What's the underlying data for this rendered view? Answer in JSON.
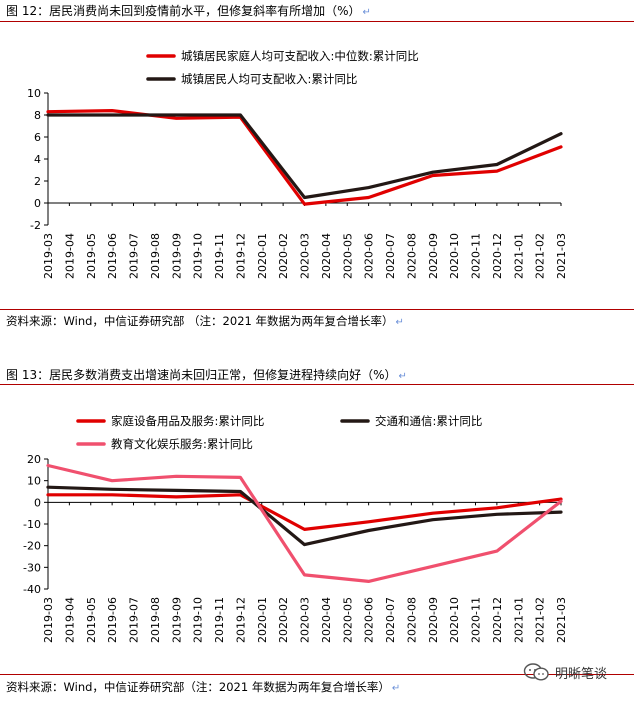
{
  "figure1": {
    "title": "图 12：居民消费尚未回到疫情前水平，但修复斜率有所增加（%）",
    "source": "资料来源：Wind，中信证券研究部 （注：2021 年数据为两年复合增长率）"
  },
  "figure2": {
    "title": "图 13：居民多数消费支出增速尚未回归正常，但修复进程持续向好（%）",
    "source": "资料来源：Wind，中信证券研究部（注：2021 年数据为两年复合增长率）"
  },
  "watermark": {
    "text": "明晰笔谈"
  },
  "chart_data": [
    {
      "type": "line",
      "categories": [
        "2019-03",
        "2019-04",
        "2019-05",
        "2019-06",
        "2019-07",
        "2019-08",
        "2019-09",
        "2019-10",
        "2019-11",
        "2019-12",
        "2020-01",
        "2020-02",
        "2020-03",
        "2020-04",
        "2020-05",
        "2020-06",
        "2020-07",
        "2020-08",
        "2020-09",
        "2020-10",
        "2020-11",
        "2020-12",
        "2021-01",
        "2021-02",
        "2021-03"
      ],
      "ylim": [
        -2,
        10
      ],
      "yticks": [
        -2,
        0,
        2,
        4,
        6,
        8,
        10
      ],
      "legend_position": "top-left",
      "grid": false,
      "series": [
        {
          "name": "城镇居民家庭人均可支配收入:中位数:累计同比",
          "color": "#e00000",
          "points": [
            [
              0,
              8.3
            ],
            [
              3,
              8.4
            ],
            [
              6,
              7.7
            ],
            [
              9,
              7.8
            ],
            [
              12,
              -0.1
            ],
            [
              15,
              0.5
            ],
            [
              18,
              2.5
            ],
            [
              21,
              2.9
            ],
            [
              24,
              5.1
            ]
          ]
        },
        {
          "name": "城镇居民人均可支配收入:累计同比",
          "color": "#231815",
          "points": [
            [
              0,
              8.0
            ],
            [
              3,
              8.0
            ],
            [
              6,
              8.0
            ],
            [
              9,
              8.0
            ],
            [
              12,
              0.5
            ],
            [
              15,
              1.4
            ],
            [
              18,
              2.8
            ],
            [
              21,
              3.5
            ],
            [
              24,
              6.3
            ]
          ]
        }
      ]
    },
    {
      "type": "line",
      "categories": [
        "2019-03",
        "2019-04",
        "2019-05",
        "2019-06",
        "2019-07",
        "2019-08",
        "2019-09",
        "2019-10",
        "2019-11",
        "2019-12",
        "2020-01",
        "2020-02",
        "2020-03",
        "2020-04",
        "2020-05",
        "2020-06",
        "2020-07",
        "2020-08",
        "2020-09",
        "2020-10",
        "2020-11",
        "2020-12",
        "2021-01",
        "2021-02",
        "2021-03"
      ],
      "ylim": [
        -40,
        20
      ],
      "yticks": [
        -40,
        -30,
        -20,
        -10,
        0,
        10,
        20
      ],
      "legend_position": "top",
      "grid": false,
      "series": [
        {
          "name": "家庭设备用品及服务:累计同比",
          "color": "#e00000",
          "points": [
            [
              0,
              3.5
            ],
            [
              3,
              3.5
            ],
            [
              6,
              2.5
            ],
            [
              9,
              3.5
            ],
            [
              12,
              -12.5
            ],
            [
              15,
              -9
            ],
            [
              18,
              -5
            ],
            [
              21,
              -2.5
            ],
            [
              24,
              1.5
            ]
          ]
        },
        {
          "name": "交通和通信:累计同比",
          "color": "#231815",
          "points": [
            [
              0,
              7.0
            ],
            [
              3,
              6.0
            ],
            [
              6,
              5.5
            ],
            [
              9,
              5.0
            ],
            [
              12,
              -19.5
            ],
            [
              15,
              -13
            ],
            [
              18,
              -8
            ],
            [
              21,
              -5.5
            ],
            [
              24,
              -4.5
            ]
          ]
        },
        {
          "name": "教育文化娱乐服务:累计同比",
          "color": "#f0506e",
          "points": [
            [
              0,
              17
            ],
            [
              3,
              10
            ],
            [
              6,
              12
            ],
            [
              9,
              11.5
            ],
            [
              12,
              -33.5
            ],
            [
              15,
              -36.5
            ],
            [
              18,
              -29.5
            ],
            [
              21,
              -22.5
            ],
            [
              24,
              0.5
            ]
          ]
        }
      ]
    }
  ]
}
